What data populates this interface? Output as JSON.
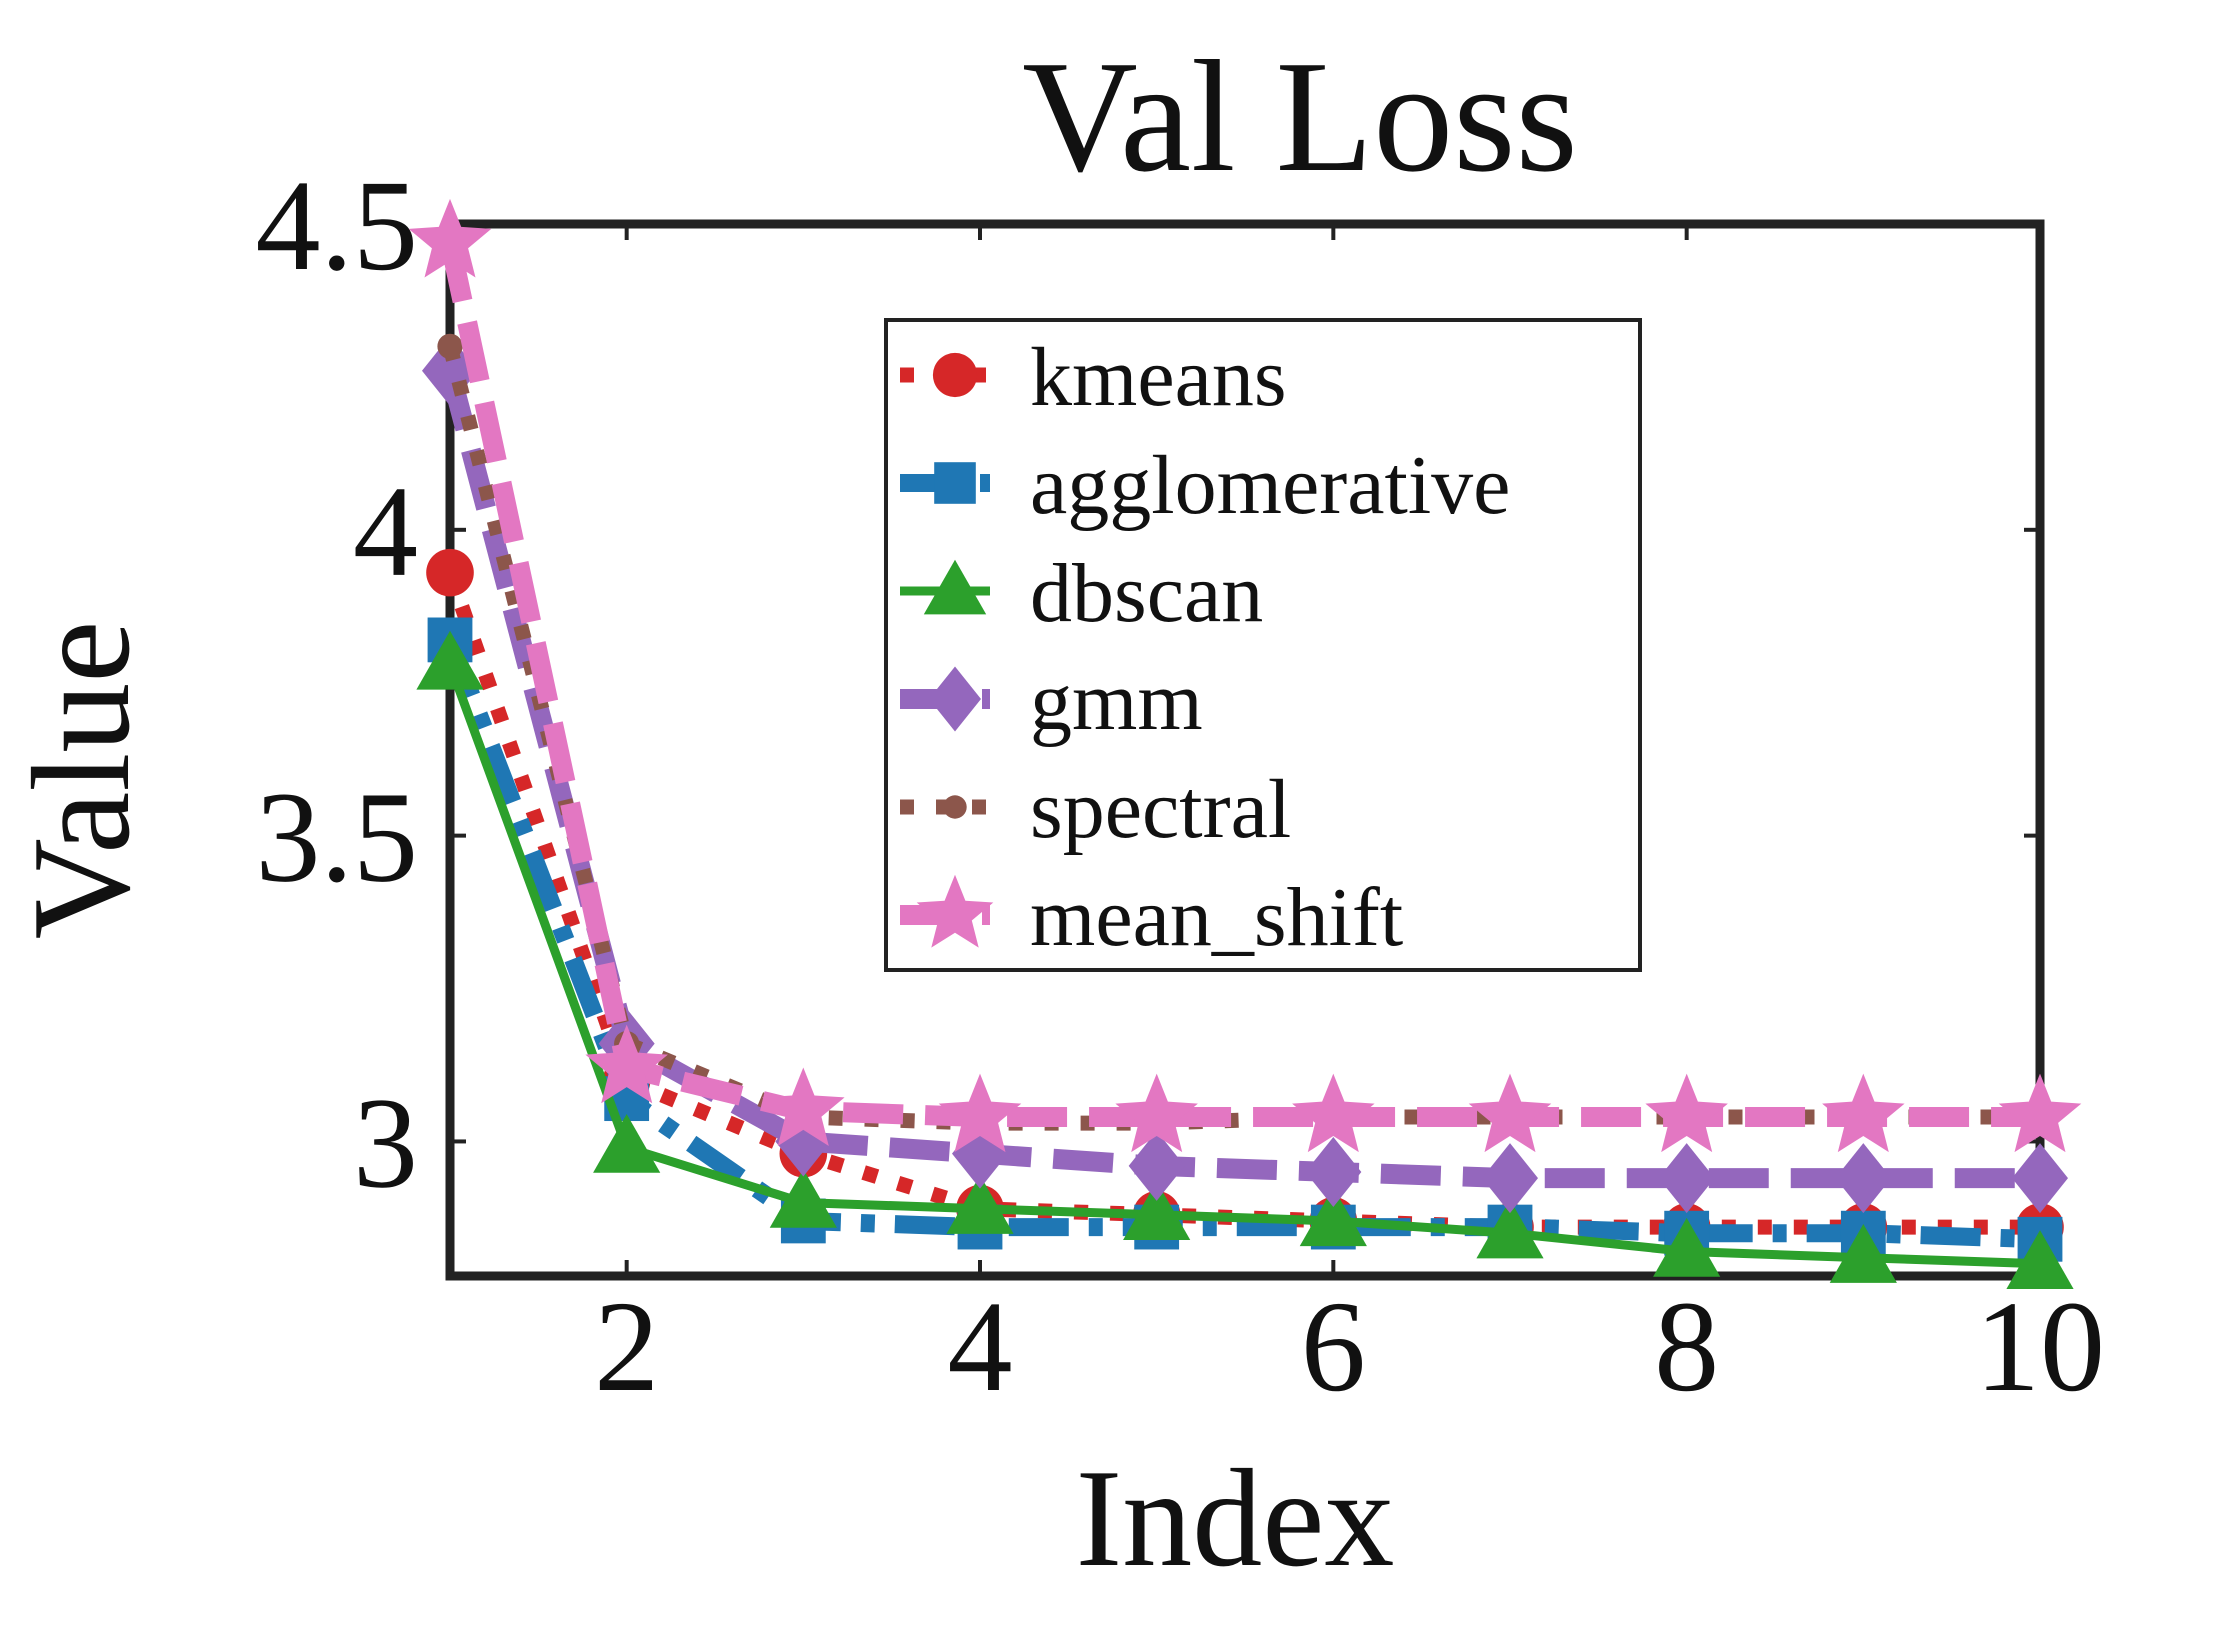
{
  "chart_data": {
    "type": "line",
    "title": "Val Loss",
    "xlabel": "Index",
    "ylabel": "Value",
    "xlim": [
      1,
      10
    ],
    "ylim": [
      2.78,
      4.5
    ],
    "x": [
      1,
      2,
      3,
      4,
      5,
      6,
      7,
      8,
      9,
      10
    ],
    "x_ticks": [
      2,
      4,
      6,
      8,
      10
    ],
    "y_ticks": [
      3,
      3.5,
      4,
      4.5
    ],
    "x_tick_labels": [
      "2",
      "4",
      "6",
      "8",
      "10"
    ],
    "y_tick_labels": [
      "3",
      "3.5",
      "4",
      "4.5"
    ],
    "legend_position": "top-right",
    "series": [
      {
        "name": "kmeans",
        "color": "#d62728",
        "marker": "circle",
        "style": "dotted",
        "values": [
          3.93,
          3.1,
          2.98,
          2.89,
          2.88,
          2.87,
          2.86,
          2.86,
          2.86,
          2.86
        ]
      },
      {
        "name": "agglomerative",
        "color": "#1f77b4",
        "marker": "square",
        "style": "dashdot",
        "values": [
          3.82,
          3.07,
          2.87,
          2.86,
          2.86,
          2.86,
          2.86,
          2.85,
          2.85,
          2.84
        ]
      },
      {
        "name": "dbscan",
        "color": "#2ca02c",
        "marker": "triangle",
        "style": "solid",
        "values": [
          3.78,
          2.99,
          2.9,
          2.89,
          2.88,
          2.87,
          2.85,
          2.82,
          2.81,
          2.8
        ]
      },
      {
        "name": "gmm",
        "color": "#9467bd",
        "marker": "diamond",
        "style": "dashed",
        "values": [
          4.26,
          3.16,
          3.0,
          2.98,
          2.96,
          2.95,
          2.94,
          2.94,
          2.94,
          2.94
        ]
      },
      {
        "name": "spectral",
        "color": "#8c564b",
        "marker": "dot",
        "style": "dotted",
        "values": [
          4.3,
          3.16,
          3.04,
          3.03,
          3.03,
          3.04,
          3.04,
          3.04,
          3.04,
          3.04
        ]
      },
      {
        "name": "mean_shift",
        "color": "#e377c2",
        "marker": "star",
        "style": "dashed",
        "values": [
          4.47,
          3.12,
          3.05,
          3.04,
          3.04,
          3.04,
          3.04,
          3.04,
          3.04,
          3.04
        ]
      }
    ]
  }
}
